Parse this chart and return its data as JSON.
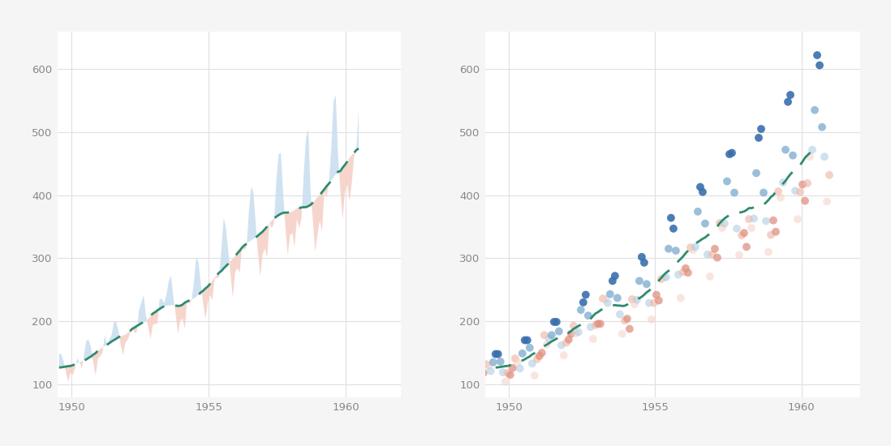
{
  "passengers": [
    112,
    118,
    132,
    129,
    121,
    135,
    148,
    148,
    136,
    119,
    104,
    118,
    115,
    126,
    141,
    135,
    125,
    149,
    170,
    170,
    158,
    133,
    114,
    140,
    145,
    150,
    178,
    163,
    172,
    178,
    199,
    199,
    184,
    162,
    146,
    166,
    171,
    180,
    193,
    181,
    183,
    218,
    230,
    242,
    209,
    191,
    172,
    194,
    196,
    196,
    236,
    235,
    229,
    243,
    264,
    272,
    237,
    211,
    180,
    201,
    204,
    188,
    235,
    227,
    234,
    264,
    302,
    293,
    259,
    229,
    203,
    229,
    242,
    233,
    267,
    269,
    270,
    315,
    364,
    347,
    312,
    274,
    237,
    278,
    284,
    277,
    317,
    313,
    318,
    374,
    413,
    405,
    355,
    306,
    271,
    306,
    315,
    301,
    356,
    348,
    355,
    422,
    465,
    467,
    404,
    347,
    305,
    336,
    340,
    318,
    362,
    348,
    363,
    435,
    491,
    505,
    404,
    359,
    310,
    337,
    360,
    342,
    406,
    396,
    420,
    472,
    548,
    559,
    463,
    407,
    362,
    405,
    417,
    391,
    419,
    461,
    472,
    535,
    622,
    606,
    508,
    461,
    390,
    432
  ],
  "ma_window": 12,
  "bg_color": "#f5f5f5",
  "plot_bg": "#ffffff",
  "blue_fill": "#c8ddef",
  "pink_fill": "#f5cfc4",
  "ma_color": "#2e8b6e",
  "blue_dot_dark": "#3a6fad",
  "blue_dot_mid": "#7aaace",
  "blue_dot_light": "#b0cde0",
  "pink_dot_dark": "#e09080",
  "pink_dot_mid": "#f0b8a8",
  "pink_dot_light": "#f5d0c5",
  "grid_color": "#e0e0e0",
  "ylim": [
    80,
    660
  ],
  "yticks": [
    100,
    200,
    300,
    400,
    500,
    600
  ],
  "xlim_left": [
    1949.5,
    1962.0
  ],
  "xlim_right": [
    1949.2,
    1962.0
  ],
  "xticks": [
    1950,
    1955,
    1960
  ],
  "tick_color": "#888888"
}
